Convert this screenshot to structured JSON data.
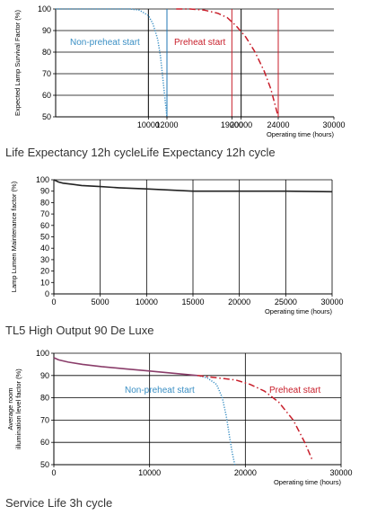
{
  "chart_data": [
    {
      "type": "line",
      "ylabel": "Expected Lamp Survival Factor (%)",
      "xlabel": "Operating time (hours)",
      "xlim": [
        0,
        30000
      ],
      "ylim": [
        50,
        100
      ],
      "xticks": [
        "10000",
        "12000",
        "19000",
        "20000",
        "24000",
        "30000"
      ],
      "xtick_values": [
        10000,
        12000,
        19000,
        20000,
        24000,
        30000
      ],
      "yticks": [
        "50",
        "60",
        "70",
        "80",
        "90",
        "100"
      ],
      "ytick_values": [
        50,
        60,
        70,
        80,
        90,
        100
      ],
      "vlines": [
        {
          "x": 10000,
          "color": "#000000"
        },
        {
          "x": 12000,
          "color": "#1f77b4"
        },
        {
          "x": 19000,
          "color": "#c81e2a"
        },
        {
          "x": 20000,
          "color": "#000000"
        },
        {
          "x": 24000,
          "color": "#c81e2a"
        }
      ],
      "series": [
        {
          "name": "Non-preheat start",
          "color": "#3a8fc4",
          "style": "dotted",
          "x": [
            0,
            8000,
            9000,
            10000,
            10500,
            11000,
            11300,
            11600,
            11800,
            12000
          ],
          "y": [
            100,
            100,
            99.5,
            97,
            93,
            86,
            78,
            66,
            58,
            50
          ]
        },
        {
          "name": "Preheat start",
          "color": "#c81e2a",
          "style": "dashdot",
          "x": [
            13000,
            14500,
            16000,
            17500,
            18500,
            19500,
            20500,
            21500,
            22500,
            23200,
            24000
          ],
          "y": [
            100,
            100,
            99.5,
            98,
            96,
            92,
            87,
            80,
            71,
            63,
            50
          ]
        }
      ],
      "caption": "Life Expectancy 12h cycleLife Expectancy 12h cycle"
    },
    {
      "type": "line",
      "ylabel": "Lamp Lumen Maintenance factor (%)",
      "xlabel": "Operating time (hours)",
      "xlim": [
        0,
        30000
      ],
      "ylim": [
        0,
        100
      ],
      "xticks": [
        "0",
        "5000",
        "10000",
        "15000",
        "20000",
        "25000",
        "30000"
      ],
      "xtick_values": [
        0,
        5000,
        10000,
        15000,
        20000,
        25000,
        30000
      ],
      "yticks": [
        "0",
        "10",
        "20",
        "30",
        "40",
        "50",
        "60",
        "70",
        "80",
        "90",
        "100"
      ],
      "ytick_values": [
        0,
        10,
        20,
        30,
        40,
        50,
        60,
        70,
        80,
        90,
        100
      ],
      "series": [
        {
          "name": "",
          "color": "#222222",
          "style": "solid",
          "x": [
            0,
            500,
            1000,
            2000,
            3000,
            5000,
            7000,
            10000,
            12500,
            15000,
            20000,
            25000,
            30000
          ],
          "y": [
            100,
            98,
            97,
            96,
            95,
            94,
            93,
            92,
            91,
            90,
            90,
            90,
            89.5
          ]
        }
      ],
      "caption": "TL5 High Output 90 De Luxe"
    },
    {
      "type": "line",
      "ylabel": "Average room illumination level factor (%)",
      "xlabel": "Operating time (hours)",
      "xlim": [
        0,
        30000
      ],
      "ylim": [
        50,
        100
      ],
      "xticks": [
        "0",
        "10000",
        "20000",
        "30000"
      ],
      "xtick_values": [
        0,
        10000,
        20000,
        30000
      ],
      "yticks": [
        "50",
        "60",
        "70",
        "80",
        "90",
        "100"
      ],
      "ytick_values": [
        50,
        60,
        70,
        80,
        90,
        100
      ],
      "series": [
        {
          "name": "",
          "color": "#8a3d6a",
          "style": "solid",
          "x": [
            0,
            500,
            1500,
            3000,
            5000,
            7500,
            10000,
            12500,
            15000
          ],
          "y": [
            98,
            97,
            96,
            95,
            94,
            93,
            92,
            91,
            90
          ]
        },
        {
          "name": "Non-preheat start",
          "color": "#3a8fc4",
          "style": "dotted",
          "x": [
            15000,
            16000,
            17000,
            17600,
            18000,
            18300,
            18600,
            18900
          ],
          "y": [
            90,
            89,
            86,
            80,
            72,
            64,
            56,
            50
          ]
        },
        {
          "name": "Preheat start",
          "color": "#c81e2a",
          "style": "dashdot",
          "x": [
            15000,
            17000,
            19000,
            20500,
            22000,
            23500,
            25000,
            26200,
            27000
          ],
          "y": [
            90,
            89,
            88,
            86,
            83,
            78,
            70,
            60,
            52
          ]
        }
      ],
      "caption": "Service Life 3h cycle"
    }
  ]
}
